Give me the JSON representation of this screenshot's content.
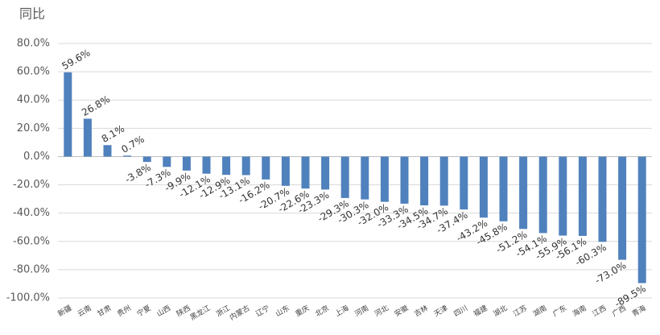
{
  "chart_data": {
    "type": "bar",
    "title": "同比",
    "categories": [
      "新疆",
      "云南",
      "甘肃",
      "贵州",
      "宁夏",
      "山西",
      "陕西",
      "黑龙江",
      "浙江",
      "内蒙古",
      "辽宁",
      "山东",
      "重庆",
      "北京",
      "上海",
      "河南",
      "河北",
      "安徽",
      "吉林",
      "天津",
      "四川",
      "福建",
      "湖北",
      "江苏",
      "湖南",
      "广东",
      "海南",
      "江西",
      "广西",
      "青海"
    ],
    "values": [
      59.6,
      26.8,
      8.1,
      0.7,
      -3.8,
      -7.3,
      -9.9,
      -12.1,
      -12.9,
      -13.1,
      -16.2,
      -20.7,
      -22.6,
      -23.3,
      -29.3,
      -30.3,
      -32.0,
      -33.3,
      -34.5,
      -34.7,
      -37.4,
      -43.2,
      -45.8,
      -51.2,
      -54.1,
      -55.9,
      -56.1,
      -60.3,
      -73.0,
      -89.5
    ],
    "value_labels": [
      "59.6%",
      "26.8%",
      "8.1%",
      "0.7%",
      "-3.8%",
      "-7.3%",
      "-9.9%",
      "-12.1%",
      "-12.9%",
      "-13.1%",
      "-16.2%",
      "-20.7%",
      "-22.6%",
      "-23.3%",
      "-29.3%",
      "-30.3%",
      "-32.0%",
      "-33.3%",
      "-34.5%",
      "-34.7%",
      "-37.4%",
      "-43.2%",
      "-45.8%",
      "-51.2%",
      "-54.1%",
      "-55.9%",
      "-56.1%",
      "-60.3%",
      "-73.0%",
      "-89.5%"
    ],
    "color": "#4f81bd",
    "ylim": [
      -100,
      80
    ],
    "yticks": [
      {
        "value": 80,
        "label": "80.0%"
      },
      {
        "value": 60,
        "label": "60.0%"
      },
      {
        "value": 40,
        "label": "40.0%"
      },
      {
        "value": 20,
        "label": "20.0%"
      },
      {
        "value": 0,
        "label": "0.0%"
      },
      {
        "value": -20,
        "label": "-20.0%"
      },
      {
        "value": -40,
        "label": "-40.0%"
      },
      {
        "value": -60,
        "label": "-60.0%"
      },
      {
        "value": -80,
        "label": "-80.0%"
      },
      {
        "value": -100,
        "label": "-100.0%"
      }
    ],
    "grid": true
  }
}
